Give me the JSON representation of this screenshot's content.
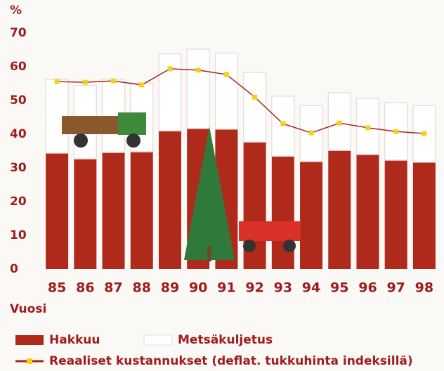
{
  "chart_data": {
    "type": "bar",
    "stacked": true,
    "y_label": "%",
    "x_label": "Vuosi",
    "categories": [
      "85",
      "86",
      "87",
      "88",
      "89",
      "90",
      "91",
      "92",
      "93",
      "94",
      "95",
      "96",
      "97",
      "98"
    ],
    "series": [
      {
        "name": "Hakkuu",
        "type": "bar",
        "color": "#b02a1c",
        "values": [
          34.4,
          32.7,
          34.6,
          34.8,
          41,
          41.7,
          41.5,
          37.7,
          33.5,
          31.9,
          35.2,
          34,
          32.3,
          31.7
        ]
      },
      {
        "name": "Metsäkuljetus",
        "type": "bar",
        "color": "#ffffff",
        "values": [
          21.9,
          21.7,
          21.7,
          20.4,
          22.8,
          23.5,
          22.5,
          20.6,
          17.8,
          16.6,
          17.1,
          16.6,
          17.1,
          16.8
        ]
      },
      {
        "name": "Reaaliset kustannukset (deflat. tukkuhinta indeksillä)",
        "type": "line",
        "color": "#a3281c",
        "marker_color": "#f2d21b",
        "values": [
          55.6,
          55.4,
          55.8,
          54.6,
          59.4,
          59,
          57.7,
          51,
          43.1,
          40.4,
          43.3,
          41.9,
          40.8,
          40.2
        ]
      }
    ],
    "ylim": [
      0,
      70
    ],
    "yticks": [
      0,
      10,
      20,
      30,
      40,
      50,
      60,
      70
    ],
    "grid": false
  }
}
